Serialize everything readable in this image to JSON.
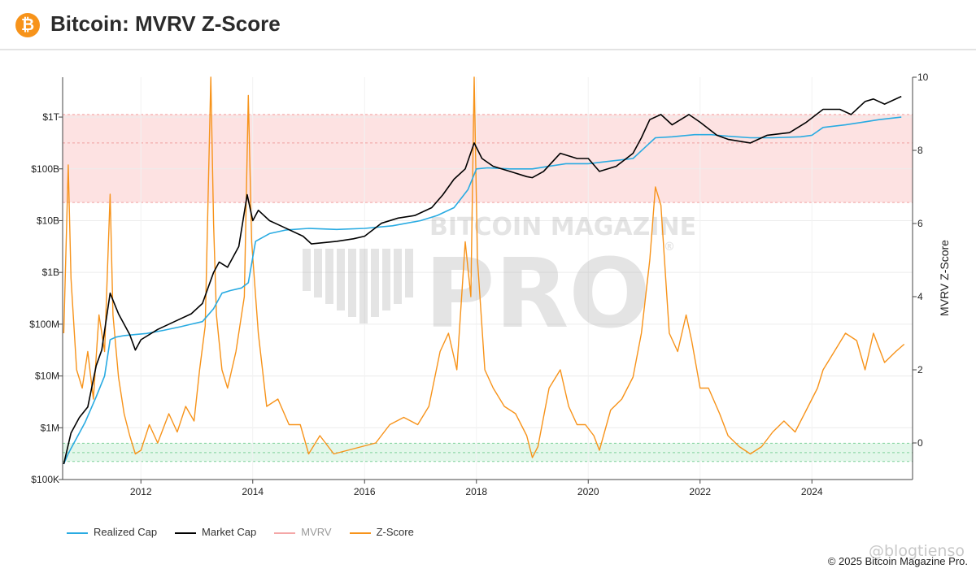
{
  "header": {
    "title": "Bitcoin: MVRV Z-Score",
    "logo_glyph": "₿",
    "logo_icon": "bitcoin-icon"
  },
  "colors": {
    "realized": "#29abe2",
    "market": "#000000",
    "mvrv": "#f4a7a7",
    "zscore": "#f7931a",
    "band_red": "#fde2e2",
    "band_green": "#e3f7ea"
  },
  "watermark": {
    "line1": "BITCOIN MAGAZINE",
    "line2": "PRO",
    "registered": "®"
  },
  "footer": {
    "credit": "@blogtienso",
    "copyright": "© 2025 Bitcoin Magazine Pro."
  },
  "chart_data": {
    "type": "line",
    "title": "Bitcoin: MVRV Z-Score",
    "y2label": "MVRV Z-Score",
    "xlim": [
      2010.6,
      2025.8
    ],
    "x_ticks": [
      "2012",
      "2014",
      "2016",
      "2018",
      "2020",
      "2022",
      "2024"
    ],
    "x_tick_values": [
      2012,
      2014,
      2016,
      2018,
      2020,
      2022,
      2024
    ],
    "y_left_scale": "log",
    "y_left_ticks": [
      "$100K",
      "$1M",
      "$10M",
      "$100M",
      "$1B",
      "$10B",
      "$100B",
      "$1T"
    ],
    "y_left_tick_exponents": [
      5,
      6,
      7,
      8,
      9,
      10,
      11,
      12
    ],
    "y_left_range_exp": [
      5.0,
      12.77
    ],
    "y_right_range": [
      -1.0,
      10.0
    ],
    "y_right_ticks": [
      0,
      2,
      4,
      6,
      8,
      10
    ],
    "bands": {
      "red_exp": [
        10.35,
        12.05
      ],
      "red_mid_exp": 11.5,
      "green_exp": [
        5.35,
        5.7
      ],
      "green_mid_exp": 5.52
    },
    "grid": true,
    "legend_position": "bottom-left",
    "series": [
      {
        "name": "Realized Cap",
        "axis": "left-log-exponent",
        "x": [
          2010.62,
          2010.7,
          2010.85,
          2011.0,
          2011.2,
          2011.35,
          2011.45,
          2011.55,
          2011.7,
          2011.9,
          2012.1,
          2012.4,
          2012.7,
          2012.9,
          2013.1,
          2013.3,
          2013.45,
          2013.6,
          2013.8,
          2013.92,
          2014.05,
          2014.3,
          2014.6,
          2015.0,
          2015.5,
          2016.0,
          2016.5,
          2017.0,
          2017.3,
          2017.6,
          2017.85,
          2018.0,
          2018.2,
          2018.6,
          2019.0,
          2019.3,
          2019.6,
          2020.0,
          2020.4,
          2020.8,
          2021.0,
          2021.2,
          2021.5,
          2021.9,
          2022.2,
          2022.5,
          2022.9,
          2023.3,
          2023.8,
          2024.0,
          2024.2,
          2024.6,
          2024.9,
          2025.2,
          2025.6
        ],
        "values": [
          5.3,
          5.5,
          5.8,
          6.1,
          6.6,
          7.0,
          7.7,
          7.75,
          7.78,
          7.8,
          7.82,
          7.88,
          7.95,
          8.0,
          8.05,
          8.3,
          8.6,
          8.65,
          8.7,
          8.8,
          9.6,
          9.75,
          9.82,
          9.85,
          9.83,
          9.85,
          9.9,
          10.0,
          10.1,
          10.25,
          10.6,
          11.0,
          11.02,
          11.0,
          11.0,
          11.05,
          11.1,
          11.1,
          11.15,
          11.2,
          11.4,
          11.6,
          11.62,
          11.66,
          11.66,
          11.63,
          11.6,
          11.6,
          11.62,
          11.65,
          11.8,
          11.85,
          11.9,
          11.95,
          12.0
        ]
      },
      {
        "name": "Market Cap",
        "axis": "left-log-exponent",
        "x": [
          2010.62,
          2010.75,
          2010.9,
          2011.05,
          2011.2,
          2011.3,
          2011.45,
          2011.6,
          2011.8,
          2011.9,
          2012.0,
          2012.3,
          2012.6,
          2012.9,
          2013.1,
          2013.3,
          2013.4,
          2013.55,
          2013.75,
          2013.9,
          2014.0,
          2014.1,
          2014.3,
          2014.5,
          2014.9,
          2015.05,
          2015.5,
          2015.8,
          2016.0,
          2016.3,
          2016.6,
          2016.9,
          2017.2,
          2017.4,
          2017.6,
          2017.8,
          2017.96,
          2018.1,
          2018.3,
          2018.6,
          2018.9,
          2019.0,
          2019.2,
          2019.5,
          2019.8,
          2020.0,
          2020.2,
          2020.5,
          2020.8,
          2020.95,
          2021.1,
          2021.3,
          2021.5,
          2021.8,
          2022.0,
          2022.3,
          2022.5,
          2022.9,
          2023.2,
          2023.6,
          2023.9,
          2024.2,
          2024.5,
          2024.7,
          2024.95,
          2025.1,
          2025.3,
          2025.6
        ],
        "values": [
          5.3,
          5.9,
          6.2,
          6.4,
          7.2,
          7.5,
          8.6,
          8.2,
          7.8,
          7.5,
          7.7,
          7.9,
          8.05,
          8.2,
          8.4,
          9.0,
          9.2,
          9.1,
          9.5,
          10.5,
          10.0,
          10.2,
          10.0,
          9.9,
          9.7,
          9.55,
          9.6,
          9.65,
          9.7,
          9.95,
          10.05,
          10.1,
          10.25,
          10.5,
          10.8,
          11.0,
          11.5,
          11.2,
          11.05,
          10.95,
          10.85,
          10.83,
          10.95,
          11.3,
          11.2,
          11.2,
          10.95,
          11.05,
          11.3,
          11.6,
          11.95,
          12.05,
          11.85,
          12.05,
          11.9,
          11.65,
          11.57,
          11.5,
          11.65,
          11.7,
          11.9,
          12.15,
          12.15,
          12.05,
          12.3,
          12.35,
          12.25,
          12.4
        ]
      },
      {
        "name": "MVRV",
        "axis": "right",
        "x": [],
        "values": []
      },
      {
        "name": "Z-Score",
        "axis": "right",
        "x": [
          2010.62,
          2010.7,
          2010.75,
          2010.85,
          2010.95,
          2011.05,
          2011.15,
          2011.25,
          2011.35,
          2011.45,
          2011.5,
          2011.6,
          2011.7,
          2011.8,
          2011.9,
          2012.0,
          2012.15,
          2012.3,
          2012.5,
          2012.65,
          2012.8,
          2012.95,
          2013.05,
          2013.15,
          2013.25,
          2013.3,
          2013.35,
          2013.45,
          2013.55,
          2013.7,
          2013.85,
          2013.92,
          2013.98,
          2014.1,
          2014.25,
          2014.45,
          2014.65,
          2014.85,
          2015.0,
          2015.2,
          2015.45,
          2015.7,
          2015.95,
          2016.2,
          2016.45,
          2016.7,
          2016.95,
          2017.15,
          2017.35,
          2017.5,
          2017.65,
          2017.8,
          2017.9,
          2017.96,
          2018.02,
          2018.15,
          2018.3,
          2018.5,
          2018.7,
          2018.9,
          2019.0,
          2019.1,
          2019.3,
          2019.5,
          2019.65,
          2019.8,
          2019.95,
          2020.1,
          2020.2,
          2020.4,
          2020.6,
          2020.8,
          2020.95,
          2021.1,
          2021.2,
          2021.3,
          2021.45,
          2021.6,
          2021.75,
          2021.85,
          2022.0,
          2022.15,
          2022.35,
          2022.5,
          2022.7,
          2022.9,
          2023.1,
          2023.3,
          2023.5,
          2023.7,
          2023.9,
          2024.1,
          2024.2,
          2024.4,
          2024.6,
          2024.8,
          2024.95,
          2025.1,
          2025.3,
          2025.5,
          2025.65
        ],
        "values": [
          3.0,
          7.6,
          4.5,
          2.0,
          1.5,
          2.5,
          1.2,
          3.5,
          2.5,
          6.8,
          3.5,
          1.8,
          0.8,
          0.2,
          -0.3,
          -0.2,
          0.5,
          0.0,
          0.8,
          0.3,
          1.0,
          0.6,
          2.0,
          3.2,
          10.0,
          6.0,
          3.5,
          2.0,
          1.5,
          2.5,
          4.0,
          9.5,
          5.5,
          3.0,
          1.0,
          1.2,
          0.5,
          0.5,
          -0.3,
          0.2,
          -0.3,
          -0.2,
          -0.1,
          0.0,
          0.5,
          0.7,
          0.5,
          1.0,
          2.5,
          3.0,
          2.0,
          5.5,
          4.0,
          10.0,
          5.0,
          2.0,
          1.5,
          1.0,
          0.8,
          0.2,
          -0.4,
          -0.1,
          1.5,
          2.0,
          1.0,
          0.5,
          0.5,
          0.2,
          -0.2,
          0.9,
          1.2,
          1.8,
          3.0,
          5.0,
          7.0,
          6.5,
          3.0,
          2.5,
          3.5,
          2.8,
          1.5,
          1.5,
          0.8,
          0.2,
          -0.1,
          -0.3,
          -0.1,
          0.3,
          0.6,
          0.3,
          0.9,
          1.5,
          2.0,
          2.5,
          3.0,
          2.8,
          2.0,
          3.0,
          2.2,
          2.5,
          2.7
        ]
      }
    ]
  }
}
